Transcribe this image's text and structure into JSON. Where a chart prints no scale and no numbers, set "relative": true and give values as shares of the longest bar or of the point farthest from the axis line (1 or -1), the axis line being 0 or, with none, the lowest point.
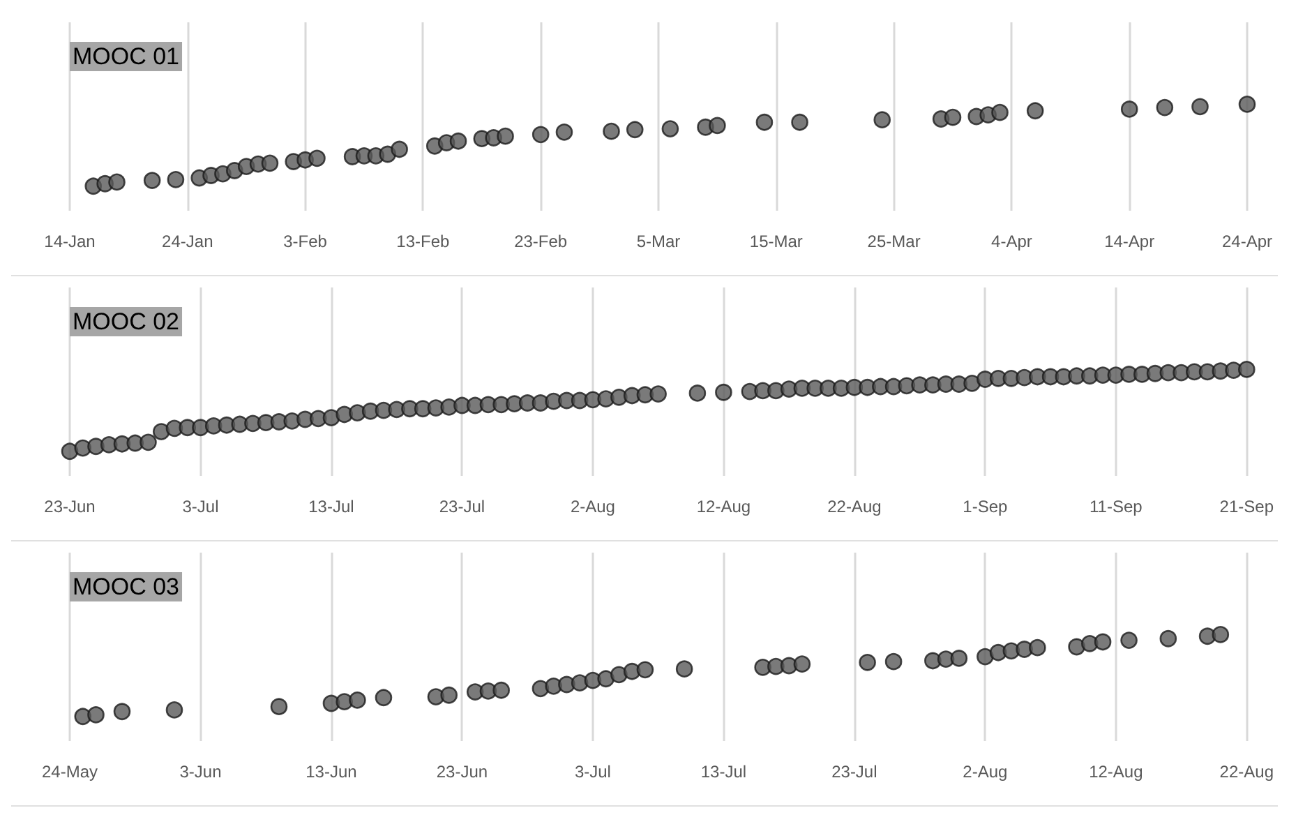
{
  "chart_data": [
    {
      "type": "scatter",
      "title": "MOOC 01",
      "relative": true,
      "grid": "x",
      "marker": "circle",
      "xlim": [
        "--01-14",
        "--04-24"
      ],
      "xticks": [
        {
          "value": "--01-14",
          "label": "14-Jan"
        },
        {
          "value": "--01-24",
          "label": "24-Jan"
        },
        {
          "value": "--02-03",
          "label": "3-Feb"
        },
        {
          "value": "--02-13",
          "label": "13-Feb"
        },
        {
          "value": "--02-23",
          "label": "23-Feb"
        },
        {
          "value": "--03-05",
          "label": "5-Mar"
        },
        {
          "value": "--03-15",
          "label": "15-Mar"
        },
        {
          "value": "--03-25",
          "label": "25-Mar"
        },
        {
          "value": "--04-04",
          "label": "4-Apr"
        },
        {
          "value": "--04-14",
          "label": "14-Apr"
        },
        {
          "value": "--04-24",
          "label": "24-Apr"
        }
      ],
      "series": [
        {
          "color": "#595959",
          "x": [
            "--01-16",
            "--01-17",
            "--01-18",
            "--01-21",
            "--01-23",
            "--01-25",
            "--01-26",
            "--01-27",
            "--01-28",
            "--01-29",
            "--01-30",
            "--01-31",
            "--02-02",
            "--02-03",
            "--02-04",
            "--02-07",
            "--02-08",
            "--02-09",
            "--02-10",
            "--02-11",
            "--02-14",
            "--02-15",
            "--02-16",
            "--02-18",
            "--02-19",
            "--02-20",
            "--02-23",
            "--02-25",
            "--03-01",
            "--03-03",
            "--03-06",
            "--03-09",
            "--03-10",
            "--03-14",
            "--03-17",
            "--03-24",
            "--03-29",
            "--03-30",
            "--04-01",
            "--04-02",
            "--04-03",
            "--04-06",
            "--04-14",
            "--04-17",
            "--04-20",
            "--04-24"
          ],
          "values": [
            0,
            0.03,
            0.05,
            0.07,
            0.08,
            0.1,
            0.13,
            0.15,
            0.19,
            0.24,
            0.27,
            0.28,
            0.3,
            0.32,
            0.34,
            0.36,
            0.37,
            0.37,
            0.39,
            0.45,
            0.49,
            0.53,
            0.55,
            0.58,
            0.59,
            0.61,
            0.63,
            0.66,
            0.67,
            0.69,
            0.7,
            0.72,
            0.74,
            0.78,
            0.78,
            0.81,
            0.82,
            0.84,
            0.85,
            0.87,
            0.9,
            0.92,
            0.94,
            0.96,
            0.97,
            1
          ]
        }
      ]
    },
    {
      "type": "scatter",
      "title": "MOOC 02",
      "relative": true,
      "grid": "x",
      "marker": "circle",
      "xlim": [
        "--06-23",
        "--09-21"
      ],
      "xticks": [
        {
          "value": "--06-23",
          "label": "23-Jun"
        },
        {
          "value": "--07-03",
          "label": "3-Jul"
        },
        {
          "value": "--07-13",
          "label": "13-Jul"
        },
        {
          "value": "--07-23",
          "label": "23-Jul"
        },
        {
          "value": "--08-02",
          "label": "2-Aug"
        },
        {
          "value": "--08-12",
          "label": "12-Aug"
        },
        {
          "value": "--08-22",
          "label": "22-Aug"
        },
        {
          "value": "--09-01",
          "label": "1-Sep"
        },
        {
          "value": "--09-11",
          "label": "11-Sep"
        },
        {
          "value": "--09-21",
          "label": "21-Sep"
        }
      ],
      "series": [
        {
          "color": "#595959",
          "x": [
            "--06-23",
            "--06-24",
            "--06-25",
            "--06-26",
            "--06-27",
            "--06-28",
            "--06-29",
            "--06-30",
            "--07-01",
            "--07-02",
            "--07-03",
            "--07-04",
            "--07-05",
            "--07-06",
            "--07-07",
            "--07-08",
            "--07-09",
            "--07-10",
            "--07-11",
            "--07-12",
            "--07-13",
            "--07-14",
            "--07-15",
            "--07-16",
            "--07-17",
            "--07-18",
            "--07-19",
            "--07-20",
            "--07-21",
            "--07-22",
            "--07-23",
            "--07-24",
            "--07-25",
            "--07-26",
            "--07-27",
            "--07-28",
            "--07-29",
            "--07-30",
            "--07-31",
            "--08-01",
            "--08-02",
            "--08-03",
            "--08-04",
            "--08-05",
            "--08-06",
            "--08-07",
            "--08-10",
            "--08-12",
            "--08-14",
            "--08-15",
            "--08-16",
            "--08-17",
            "--08-18",
            "--08-19",
            "--08-20",
            "--08-21",
            "--08-22",
            "--08-23",
            "--08-24",
            "--08-25",
            "--08-26",
            "--08-27",
            "--08-28",
            "--08-29",
            "--08-30",
            "--08-31",
            "--09-01",
            "--09-02",
            "--09-03",
            "--09-04",
            "--09-05",
            "--09-06",
            "--09-07",
            "--09-08",
            "--09-09",
            "--09-10",
            "--09-11",
            "--09-12",
            "--09-13",
            "--09-14",
            "--09-15",
            "--09-16",
            "--09-17",
            "--09-18",
            "--09-19",
            "--09-20",
            "--09-21"
          ],
          "values": [
            0,
            0.04,
            0.06,
            0.08,
            0.09,
            0.1,
            0.11,
            0.24,
            0.28,
            0.29,
            0.29,
            0.31,
            0.32,
            0.33,
            0.34,
            0.35,
            0.36,
            0.37,
            0.39,
            0.4,
            0.41,
            0.45,
            0.47,
            0.49,
            0.5,
            0.51,
            0.52,
            0.52,
            0.53,
            0.54,
            0.56,
            0.56,
            0.57,
            0.57,
            0.58,
            0.59,
            0.59,
            0.61,
            0.62,
            0.62,
            0.63,
            0.64,
            0.66,
            0.68,
            0.69,
            0.7,
            0.71,
            0.72,
            0.73,
            0.74,
            0.74,
            0.76,
            0.77,
            0.77,
            0.77,
            0.77,
            0.78,
            0.78,
            0.79,
            0.79,
            0.8,
            0.81,
            0.81,
            0.82,
            0.82,
            0.83,
            0.88,
            0.89,
            0.89,
            0.9,
            0.91,
            0.91,
            0.91,
            0.92,
            0.92,
            0.93,
            0.93,
            0.94,
            0.94,
            0.95,
            0.96,
            0.96,
            0.97,
            0.97,
            0.98,
            0.99,
            1
          ]
        }
      ]
    },
    {
      "type": "scatter",
      "title": "MOOC 03",
      "relative": true,
      "grid": "x",
      "marker": "circle",
      "xlim": [
        "--05-24",
        "--08-22"
      ],
      "xticks": [
        {
          "value": "--05-24",
          "label": "24-May"
        },
        {
          "value": "--06-03",
          "label": "3-Jun"
        },
        {
          "value": "--06-13",
          "label": "13-Jun"
        },
        {
          "value": "--06-23",
          "label": "23-Jun"
        },
        {
          "value": "--07-03",
          "label": "3-Jul"
        },
        {
          "value": "--07-13",
          "label": "13-Jul"
        },
        {
          "value": "--07-23",
          "label": "23-Jul"
        },
        {
          "value": "--08-02",
          "label": "2-Aug"
        },
        {
          "value": "--08-12",
          "label": "12-Aug"
        },
        {
          "value": "--08-22",
          "label": "22-Aug"
        }
      ],
      "series": [
        {
          "color": "#595959",
          "x": [
            "--05-25",
            "--05-26",
            "--05-28",
            "--06-01",
            "--06-09",
            "--06-13",
            "--06-14",
            "--06-15",
            "--06-17",
            "--06-21",
            "--06-22",
            "--06-24",
            "--06-25",
            "--06-26",
            "--06-29",
            "--06-30",
            "--07-01",
            "--07-02",
            "--07-03",
            "--07-04",
            "--07-05",
            "--07-06",
            "--07-07",
            "--07-10",
            "--07-16",
            "--07-17",
            "--07-18",
            "--07-19",
            "--07-24",
            "--07-26",
            "--07-29",
            "--07-30",
            "--07-31",
            "--08-02",
            "--08-03",
            "--08-04",
            "--08-05",
            "--08-06",
            "--08-09",
            "--08-10",
            "--08-11",
            "--08-13",
            "--08-16",
            "--08-19",
            "--08-20"
          ],
          "values": [
            0,
            0.02,
            0.06,
            0.08,
            0.12,
            0.16,
            0.18,
            0.2,
            0.23,
            0.24,
            0.26,
            0.3,
            0.31,
            0.32,
            0.34,
            0.37,
            0.39,
            0.41,
            0.44,
            0.46,
            0.51,
            0.55,
            0.57,
            0.58,
            0.6,
            0.61,
            0.62,
            0.64,
            0.66,
            0.67,
            0.68,
            0.7,
            0.71,
            0.73,
            0.78,
            0.8,
            0.82,
            0.84,
            0.85,
            0.89,
            0.91,
            0.93,
            0.95,
            0.98,
            1
          ]
        }
      ]
    }
  ]
}
